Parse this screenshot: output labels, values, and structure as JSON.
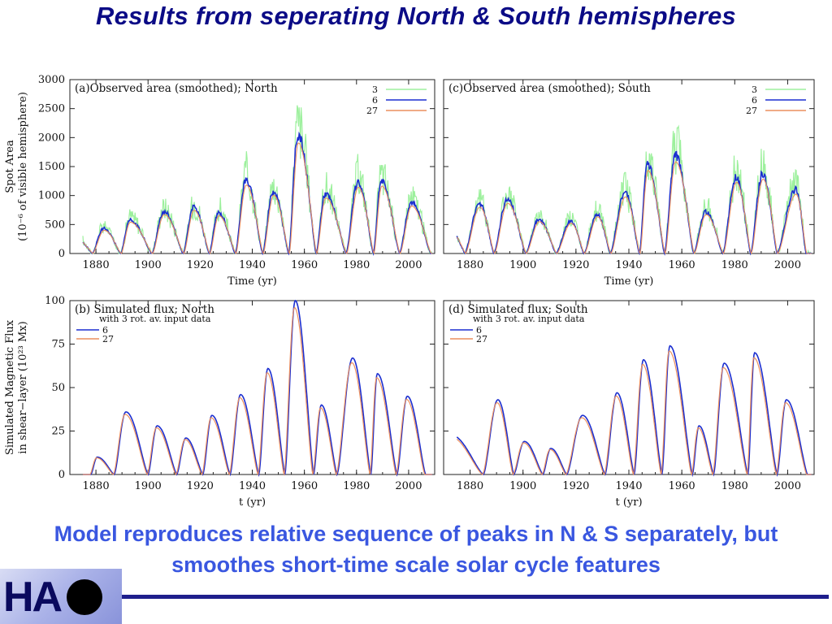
{
  "slide": {
    "title": "Results from seperating North & South hemispheres",
    "caption_line1": "Model reproduces relative sequence of peaks in N & S separately, but",
    "caption_line2": "smoothes short-time scale solar cycle features",
    "logo_text": "HA"
  },
  "colors": {
    "title": "#0b0b86",
    "caption": "#3a57e0",
    "series_3": "#9df09d",
    "series_6": "#1c2fd0",
    "series_27": "#ec8f5e",
    "logo_bar": "#1e1e8c"
  },
  "axis_labels": {
    "top_y_line1": "Spot Area",
    "top_y_line2": "(10⁻⁶ of visible hemisphere)",
    "top_x": "Time (yr)",
    "bottom_y_line1": "Simulated Magnetic Flux",
    "bottom_y_line2": "in shear−layer (10²³ Mx)",
    "bottom_x": "t (yr)"
  },
  "chart_data": [
    {
      "type": "line",
      "id": "a",
      "title": "(a)Observed area (smoothed); North",
      "subtitle": "",
      "xlim": [
        1870,
        2010
      ],
      "ylim": [
        0,
        3000
      ],
      "xticks": [
        "1880",
        "1900",
        "1920",
        "1940",
        "1960",
        "1980",
        "2000"
      ],
      "yticks": [
        "0",
        "500",
        "1000",
        "1500",
        "2000",
        "2500",
        "3000"
      ],
      "legend": [
        "3",
        "6",
        "27"
      ],
      "legend_position": "top-right",
      "cycle_minima": [
        1878.5,
        1889.5,
        1901.5,
        1913.5,
        1923.5,
        1933.5,
        1944.0,
        1954.0,
        1964.5,
        1976.0,
        1986.5,
        1996.5,
        2008.5
      ],
      "cycle_peaks": [
        [
          1883.0,
          430
        ],
        [
          1893.0,
          580
        ],
        [
          1906.0,
          720
        ],
        [
          1917.5,
          800
        ],
        [
          1927.0,
          700
        ],
        [
          1937.5,
          1270
        ],
        [
          1948.0,
          1080
        ],
        [
          1957.5,
          2050
        ],
        [
          1968.0,
          1030
        ],
        [
          1980.5,
          1230
        ],
        [
          1989.5,
          1250
        ],
        [
          2001.0,
          880
        ]
      ],
      "start": [
        1875.0,
        200
      ]
    },
    {
      "type": "line",
      "id": "c",
      "title": "(c)Observed area (smoothed); South",
      "subtitle": "",
      "xlim": [
        1870,
        2010
      ],
      "ylim": [
        0,
        3000
      ],
      "xticks": [
        "1880",
        "1900",
        "1920",
        "1940",
        "1960",
        "1980",
        "2000"
      ],
      "yticks": [
        "0",
        "500",
        "1000",
        "1500",
        "2000",
        "2500",
        "3000"
      ],
      "legend": [
        "3",
        "6",
        "27"
      ],
      "legend_position": "top-right",
      "cycle_minima": [
        1878.0,
        1889.0,
        1901.0,
        1912.5,
        1923.0,
        1933.0,
        1944.0,
        1953.5,
        1964.5,
        1975.5,
        1986.0,
        1996.0,
        2007.0
      ],
      "cycle_peaks": [
        [
          1883.5,
          860
        ],
        [
          1894.0,
          930
        ],
        [
          1906.0,
          590
        ],
        [
          1918.0,
          560
        ],
        [
          1928.0,
          680
        ],
        [
          1938.5,
          1050
        ],
        [
          1947.0,
          1540
        ],
        [
          1957.5,
          1700
        ],
        [
          1969.0,
          720
        ],
        [
          1980.5,
          1320
        ],
        [
          1990.5,
          1380
        ],
        [
          2003.0,
          1100
        ]
      ],
      "start": [
        1875.0,
        300
      ]
    },
    {
      "type": "line",
      "id": "b",
      "title": "(b) Simulated flux; North",
      "subtitle": "with 3 rot. av. input data",
      "xlim": [
        1870,
        2010
      ],
      "ylim": [
        0,
        100
      ],
      "xticks": [
        "1880",
        "1900",
        "1920",
        "1940",
        "1960",
        "1980",
        "2000"
      ],
      "yticks": [
        "0",
        "25",
        "50",
        "75",
        "100"
      ],
      "legend": [
        "6",
        "27"
      ],
      "legend_position": "top-left",
      "cycle_minima": [
        1878.0,
        1887.0,
        1900.0,
        1911.0,
        1921.0,
        1931.5,
        1942.5,
        1952.5,
        1963.5,
        1972.5,
        1985.5,
        1995.5,
        2006.5
      ],
      "cycle_peaks": [
        [
          1880.5,
          10
        ],
        [
          1891.5,
          36
        ],
        [
          1903.5,
          28
        ],
        [
          1914.5,
          21
        ],
        [
          1924.5,
          34
        ],
        [
          1935.5,
          46
        ],
        [
          1946.0,
          61
        ],
        [
          1956.5,
          100
        ],
        [
          1966.5,
          40
        ],
        [
          1978.5,
          67
        ],
        [
          1988.0,
          58
        ],
        [
          1999.5,
          45
        ]
      ]
    },
    {
      "type": "line",
      "id": "d",
      "title": "(d) Simulated flux; South",
      "subtitle": "with 3 rot. av. input data",
      "xlim": [
        1870,
        2010
      ],
      "ylim": [
        0,
        100
      ],
      "xticks": [
        "1880",
        "1900",
        "1920",
        "1940",
        "1960",
        "1980",
        "2000"
      ],
      "yticks": [],
      "legend": [
        "6",
        "27"
      ],
      "legend_position": "top-left",
      "cycle_minima": [
        1872.0,
        1885.0,
        1896.5,
        1907.5,
        1916.5,
        1931.0,
        1942.0,
        1952.5,
        1964.0,
        1972.0,
        1985.0,
        1996.0,
        2007.5
      ],
      "cycle_peaks": [
        [
          1872.5,
          23
        ],
        [
          1890.5,
          43
        ],
        [
          1900.5,
          19
        ],
        [
          1910.5,
          15
        ],
        [
          1922.5,
          34
        ],
        [
          1935.5,
          47
        ],
        [
          1945.5,
          66
        ],
        [
          1955.5,
          74
        ],
        [
          1966.5,
          28
        ],
        [
          1976.0,
          64
        ],
        [
          1987.5,
          70
        ],
        [
          1999.5,
          43
        ]
      ]
    }
  ]
}
